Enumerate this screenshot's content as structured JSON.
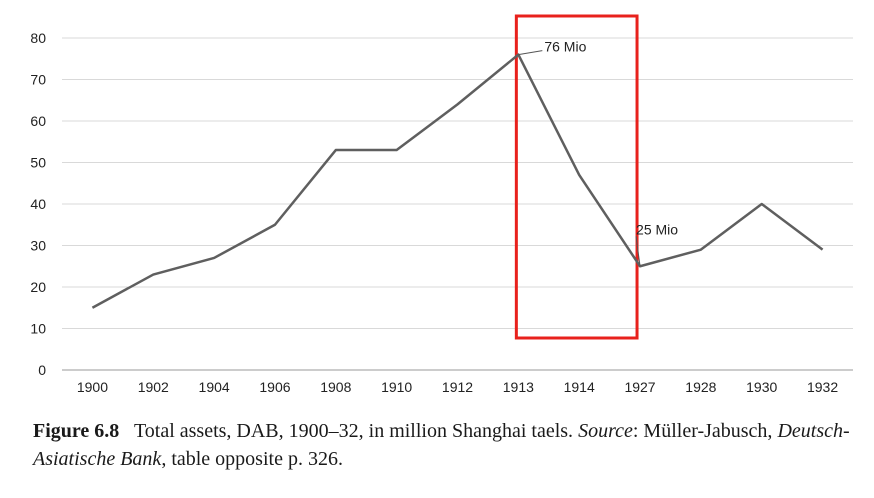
{
  "chart_data": {
    "type": "line",
    "categories": [
      "1900",
      "1902",
      "1904",
      "1906",
      "1908",
      "1910",
      "1912",
      "1913",
      "1914",
      "1927",
      "1928",
      "1930",
      "1932"
    ],
    "series": [
      {
        "values": [
          15,
          23,
          27,
          35,
          53,
          53,
          64,
          76,
          47,
          25,
          29,
          40,
          29
        ]
      }
    ],
    "ylim": [
      0,
      80
    ],
    "yticks": [
      "0",
      "10",
      "20",
      "30",
      "40",
      "50",
      "60",
      "70",
      "80"
    ],
    "grid": true,
    "line_color": "#5f5f5f",
    "annotations": [
      {
        "text": "76 Mio",
        "category": "1913",
        "value": 76
      },
      {
        "text": "25 Mio",
        "category": "1927",
        "value": 25
      }
    ],
    "highlight": {
      "from": "1913",
      "to": "1927",
      "color": "#e8211c"
    }
  },
  "caption": {
    "figure_label": "Figure 6.8",
    "text_main": "Total assets, DAB, 1900–32, in million Shanghai taels.",
    "source_label": "Source",
    "source_author": ": Müller-Jabusch,",
    "source_title": "Deutsch-Asiatische Bank",
    "source_rest": ", table opposite p. 326."
  }
}
